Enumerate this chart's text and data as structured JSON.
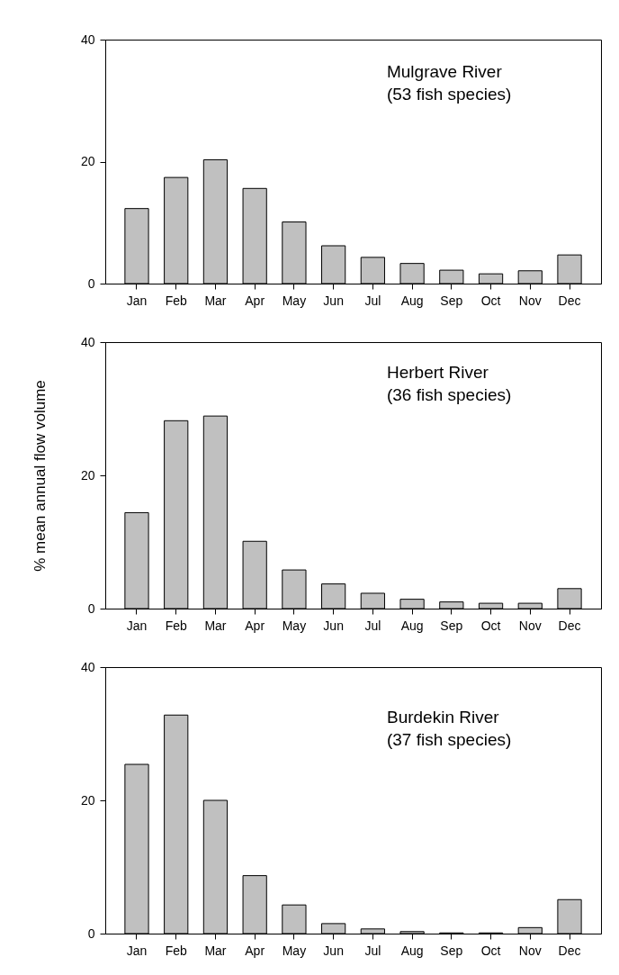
{
  "chart_data": [
    {
      "type": "bar",
      "categories": [
        "Jan",
        "Feb",
        "Mar",
        "Apr",
        "May",
        "Jun",
        "Jul",
        "Aug",
        "Sep",
        "Oct",
        "Nov",
        "Dec"
      ],
      "values": [
        12.3,
        17.4,
        20.3,
        15.6,
        10.1,
        6.2,
        4.3,
        3.3,
        2.2,
        1.6,
        2.1,
        4.7
      ],
      "color": "#c0c0c0",
      "ylim": [
        0,
        40
      ],
      "yticks": [
        0,
        20,
        40
      ],
      "annotations": [
        "Mulgrave River",
        "(53 fish species)"
      ]
    },
    {
      "type": "bar",
      "categories": [
        "Jan",
        "Feb",
        "Mar",
        "Apr",
        "May",
        "Jun",
        "Jul",
        "Aug",
        "Sep",
        "Oct",
        "Nov",
        "Dec"
      ],
      "values": [
        14.4,
        28.2,
        28.9,
        10.1,
        5.8,
        3.7,
        2.3,
        1.4,
        1.0,
        0.8,
        0.8,
        3.0
      ],
      "color": "#c0c0c0",
      "ylim": [
        0,
        40
      ],
      "yticks": [
        0,
        20,
        40
      ],
      "ylabel": "% mean annual flow volume",
      "annotations": [
        "Herbert River",
        "(36 fish species)"
      ]
    },
    {
      "type": "bar",
      "categories": [
        "Jan",
        "Feb",
        "Mar",
        "Apr",
        "May",
        "Jun",
        "Jul",
        "Aug",
        "Sep",
        "Oct",
        "Nov",
        "Dec"
      ],
      "values": [
        25.4,
        32.8,
        20.0,
        8.7,
        4.3,
        1.5,
        0.7,
        0.3,
        0.1,
        0.1,
        0.9,
        5.1
      ],
      "color": "#c0c0c0",
      "ylim": [
        0,
        40
      ],
      "yticks": [
        0,
        20,
        40
      ],
      "annotations": [
        "Burdekin River",
        "(37 fish species)"
      ]
    }
  ]
}
